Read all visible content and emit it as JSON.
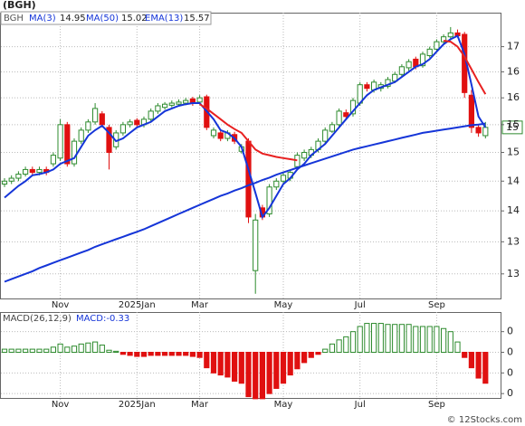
{
  "chart_data": [
    {
      "type": "candlestick",
      "title": "(BGH)",
      "categories": [
        null,
        null,
        null,
        null,
        null,
        null,
        null,
        null,
        "Nov",
        null,
        null,
        null,
        null,
        null,
        null,
        null,
        null,
        null,
        null,
        "2025Jan",
        null,
        null,
        null,
        null,
        null,
        null,
        null,
        null,
        "Mar",
        null,
        null,
        null,
        null,
        null,
        null,
        null,
        null,
        null,
        null,
        null,
        "May",
        null,
        null,
        null,
        null,
        null,
        null,
        null,
        null,
        null,
        null,
        "Jul",
        null,
        null,
        null,
        null,
        null,
        null,
        null,
        null,
        null,
        null,
        "Sep",
        null,
        null,
        null,
        null,
        null,
        null,
        null
      ],
      "series": [
        {
          "name": "BGH",
          "up_color": "#2e8b2e",
          "down_color": "#e01010",
          "open": [
            13.95,
            14.0,
            14.05,
            14.12,
            14.2,
            14.15,
            14.2,
            14.3,
            14.4,
            15.0,
            14.3,
            14.7,
            14.9,
            15.05,
            15.2,
            14.95,
            14.6,
            14.85,
            15.0,
            15.08,
            15.0,
            15.1,
            15.25,
            15.32,
            15.36,
            15.38,
            15.4,
            15.48,
            15.42,
            15.52,
            14.8,
            14.85,
            14.75,
            14.82,
            14.52,
            14.7,
            12.55,
            13.55,
            13.45,
            13.9,
            14.0,
            14.05,
            14.25,
            14.4,
            14.45,
            14.55,
            14.7,
            14.88,
            15.0,
            15.22,
            15.2,
            15.4,
            15.75,
            15.65,
            15.68,
            15.72,
            15.82,
            15.95,
            16.08,
            16.25,
            16.12,
            16.32,
            16.45,
            16.6,
            16.7,
            16.78,
            16.75,
            15.55,
            14.95,
            14.8
          ],
          "high": [
            14.05,
            14.1,
            14.17,
            14.25,
            14.25,
            14.25,
            14.25,
            14.5,
            15.1,
            15.05,
            14.75,
            14.95,
            15.1,
            15.4,
            15.25,
            15.0,
            14.9,
            15.05,
            15.1,
            15.12,
            15.15,
            15.3,
            15.4,
            15.42,
            15.45,
            15.47,
            15.5,
            15.52,
            15.55,
            15.56,
            14.95,
            14.9,
            14.9,
            14.87,
            14.65,
            14.75,
            13.45,
            13.6,
            13.95,
            14.05,
            14.15,
            14.2,
            14.5,
            14.55,
            14.6,
            14.75,
            14.95,
            15.05,
            15.3,
            15.28,
            15.5,
            15.8,
            15.8,
            15.85,
            15.8,
            15.9,
            16.0,
            16.15,
            16.25,
            16.3,
            16.4,
            16.5,
            16.65,
            16.75,
            16.9,
            16.85,
            16.8,
            15.65,
            15.0,
            15.05
          ],
          "low": [
            13.9,
            13.95,
            14.0,
            14.08,
            14.1,
            14.1,
            14.1,
            14.25,
            14.35,
            14.25,
            14.25,
            14.65,
            14.85,
            15.0,
            14.95,
            14.2,
            14.55,
            14.8,
            14.95,
            14.95,
            14.95,
            15.05,
            15.2,
            15.28,
            15.32,
            15.34,
            15.36,
            15.35,
            15.38,
            14.9,
            14.75,
            14.7,
            14.7,
            14.65,
            14.48,
            13.3,
            12.2,
            13.35,
            13.4,
            13.85,
            13.95,
            14.0,
            14.2,
            14.35,
            14.4,
            14.5,
            14.65,
            14.85,
            14.95,
            15.1,
            15.15,
            15.35,
            15.62,
            15.6,
            15.62,
            15.68,
            15.78,
            15.9,
            16.02,
            16.05,
            16.08,
            16.28,
            16.4,
            16.55,
            16.65,
            16.68,
            15.5,
            14.85,
            14.78,
            14.75
          ],
          "close": [
            14.0,
            14.05,
            14.12,
            14.2,
            14.15,
            14.2,
            14.15,
            14.45,
            15.0,
            14.3,
            14.7,
            14.9,
            15.05,
            15.3,
            15.0,
            14.5,
            14.85,
            15.0,
            15.05,
            15.0,
            15.1,
            15.25,
            15.35,
            15.38,
            15.4,
            15.42,
            15.45,
            15.4,
            15.5,
            14.95,
            14.9,
            14.75,
            14.85,
            14.7,
            14.6,
            13.4,
            13.35,
            13.4,
            13.9,
            14.0,
            14.1,
            14.15,
            14.45,
            14.5,
            14.55,
            14.7,
            14.9,
            15.0,
            15.25,
            15.15,
            15.45,
            15.75,
            15.68,
            15.8,
            15.75,
            15.85,
            15.95,
            16.1,
            16.2,
            16.1,
            16.35,
            16.45,
            16.6,
            16.7,
            16.78,
            16.72,
            15.6,
            14.95,
            14.85,
            14.95
          ]
        },
        {
          "name": "MA(3)",
          "color": "#1535d8",
          "legend_value": 14.95,
          "values": [
            13.72,
            13.82,
            13.92,
            14.0,
            14.1,
            14.12,
            14.15,
            14.2,
            14.3,
            14.35,
            14.4,
            14.6,
            14.8,
            14.9,
            14.98,
            14.85,
            14.7,
            14.75,
            14.85,
            14.95,
            15.0,
            15.05,
            15.15,
            15.25,
            15.3,
            15.35,
            15.38,
            15.4,
            15.4,
            15.25,
            15.1,
            14.9,
            14.85,
            14.75,
            14.6,
            14.2,
            13.8,
            13.4,
            13.55,
            13.75,
            13.95,
            14.05,
            14.2,
            14.3,
            14.45,
            14.55,
            14.65,
            14.8,
            14.95,
            15.1,
            15.25,
            15.4,
            15.55,
            15.65,
            15.7,
            15.75,
            15.8,
            15.9,
            16.0,
            16.1,
            16.15,
            16.25,
            16.4,
            16.55,
            16.65,
            16.72,
            16.35,
            15.75,
            15.15,
            14.95
          ]
        },
        {
          "name": "MA(50)",
          "color": "#1535d8",
          "legend_value": 15.02,
          "values": [
            12.38,
            12.42,
            12.46,
            12.5,
            12.54,
            12.59,
            12.63,
            12.67,
            12.71,
            12.75,
            12.79,
            12.83,
            12.87,
            12.92,
            12.96,
            13.0,
            13.04,
            13.08,
            13.12,
            13.16,
            13.2,
            13.25,
            13.3,
            13.35,
            13.4,
            13.45,
            13.5,
            13.55,
            13.6,
            13.65,
            13.7,
            13.75,
            13.79,
            13.84,
            13.88,
            13.93,
            13.97,
            14.02,
            14.06,
            14.11,
            14.15,
            14.19,
            14.23,
            14.27,
            14.31,
            14.35,
            14.39,
            14.43,
            14.47,
            14.51,
            14.55,
            14.58,
            14.61,
            14.64,
            14.67,
            14.7,
            14.73,
            14.76,
            14.79,
            14.82,
            14.85,
            14.87,
            14.89,
            14.91,
            14.93,
            14.95,
            14.97,
            14.99,
            15.0,
            15.02
          ]
        },
        {
          "name": "EMA(13)",
          "color": "#e82020",
          "legend_value": 15.57,
          "values": [
            null,
            null,
            null,
            null,
            null,
            null,
            null,
            null,
            null,
            null,
            null,
            null,
            null,
            null,
            null,
            null,
            null,
            null,
            null,
            null,
            null,
            null,
            null,
            null,
            null,
            null,
            null,
            null,
            15.38,
            15.3,
            15.2,
            15.1,
            15.0,
            14.92,
            14.85,
            14.7,
            14.55,
            14.48,
            14.45,
            14.42,
            14.4,
            14.38,
            14.36,
            null,
            null,
            null,
            null,
            null,
            null,
            null,
            null,
            null,
            null,
            null,
            null,
            null,
            null,
            null,
            null,
            null,
            null,
            null,
            null,
            16.62,
            16.6,
            16.5,
            16.3,
            16.05,
            15.8,
            15.57
          ]
        }
      ],
      "ylim": [
        12.13,
        17.2
      ],
      "log_scale": true,
      "grid": true,
      "yticks": [
        {
          "value": 16.5,
          "label": "17"
        },
        16,
        {
          "value": 15.5,
          "label": "16"
        },
        15,
        {
          "value": 14.5,
          "label": "15"
        },
        14,
        {
          "value": 13.5,
          "label": "14"
        },
        13,
        {
          "value": 12.5,
          "label": "13"
        }
      ],
      "last_price": {
        "value": 14.95,
        "label": "15"
      }
    },
    {
      "type": "bar",
      "title": "MACD(26,12,9)",
      "legend_label": "MACD:-0.33",
      "up_color": "#2e8b2e",
      "down_color": "#e01010",
      "values": [
        0.03,
        0.03,
        0.03,
        0.03,
        0.03,
        0.03,
        0.03,
        0.05,
        0.08,
        0.05,
        0.06,
        0.08,
        0.09,
        0.1,
        0.07,
        0.02,
        0.01,
        -0.02,
        -0.03,
        -0.04,
        -0.04,
        -0.03,
        -0.03,
        -0.03,
        -0.03,
        -0.03,
        -0.03,
        -0.04,
        -0.05,
        -0.15,
        -0.2,
        -0.22,
        -0.24,
        -0.28,
        -0.3,
        -0.43,
        -0.45,
        -0.45,
        -0.4,
        -0.35,
        -0.3,
        -0.22,
        -0.16,
        -0.1,
        -0.05,
        -0.02,
        0.03,
        0.08,
        0.12,
        0.15,
        0.2,
        0.25,
        0.28,
        0.28,
        0.28,
        0.27,
        0.27,
        0.27,
        0.27,
        0.25,
        0.25,
        0.25,
        0.25,
        0.23,
        0.2,
        0.1,
        -0.05,
        -0.15,
        -0.25,
        -0.3
      ],
      "ylim": [
        -0.46,
        0.39
      ],
      "grid": true,
      "yticks": [
        {
          "value": 0.2,
          "label": "0"
        },
        0,
        {
          "value": -0.2,
          "label": "0"
        },
        {
          "value": -0.4,
          "label": "0"
        }
      ]
    }
  ],
  "watermark": "© 12Stocks.com"
}
